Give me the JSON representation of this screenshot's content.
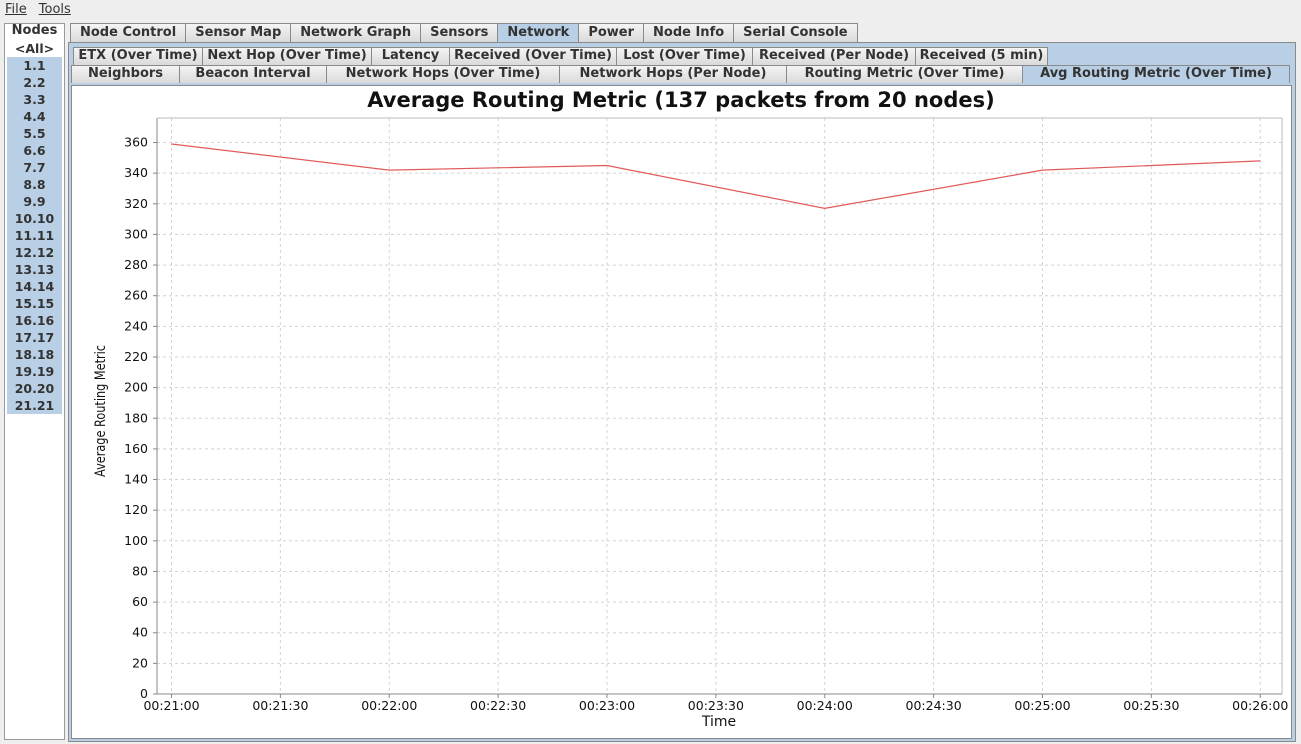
{
  "menubar": {
    "items": [
      "File",
      "Tools"
    ]
  },
  "nodes_panel": {
    "title": "Nodes",
    "items": [
      "<All>",
      "1.1",
      "2.2",
      "3.3",
      "4.4",
      "5.5",
      "6.6",
      "7.7",
      "8.8",
      "9.9",
      "10.10",
      "11.11",
      "12.12",
      "13.13",
      "14.14",
      "15.15",
      "16.16",
      "17.17",
      "18.18",
      "19.19",
      "20.20",
      "21.21"
    ]
  },
  "top_tabs": [
    "Node Control",
    "Sensor Map",
    "Network Graph",
    "Sensors",
    "Network",
    "Power",
    "Node Info",
    "Serial Console"
  ],
  "active_top_tab": "Network",
  "sub_tabs_row1": [
    "ETX (Over Time)",
    "Next Hop (Over Time)",
    "Latency",
    "Received (Over Time)",
    "Lost (Over Time)",
    "Received (Per Node)",
    "Received (5 min)"
  ],
  "sub_tabs_row2": [
    "Neighbors",
    "Beacon Interval",
    "Network Hops (Over Time)",
    "Network Hops (Per Node)",
    "Routing Metric (Over Time)",
    "Avg Routing Metric (Over Time)"
  ],
  "active_sub_tab": "Avg Routing Metric (Over Time)",
  "chart_data": {
    "type": "line",
    "title": "Average Routing Metric (137 packets from 20 nodes)",
    "xlabel": "Time",
    "ylabel": "Average Routing Metric",
    "x_ticks": [
      "00:21:00",
      "00:21:30",
      "00:22:00",
      "00:22:30",
      "00:23:00",
      "00:23:30",
      "00:24:00",
      "00:24:30",
      "00:25:00",
      "00:25:30",
      "00:26:00"
    ],
    "y_ticks": [
      0,
      20,
      40,
      60,
      80,
      100,
      120,
      140,
      160,
      180,
      200,
      220,
      240,
      260,
      280,
      300,
      320,
      340,
      360
    ],
    "xlim": [
      "00:20:56",
      "00:26:06"
    ],
    "ylim": [
      0,
      376
    ],
    "grid": true,
    "line_color": "#e05a5a",
    "series": [
      {
        "x": [
          "00:21:00",
          "00:22:00",
          "00:23:00",
          "00:24:00",
          "00:25:00",
          "00:26:00"
        ],
        "values": [
          359,
          342,
          345,
          317,
          342,
          348
        ]
      }
    ]
  }
}
